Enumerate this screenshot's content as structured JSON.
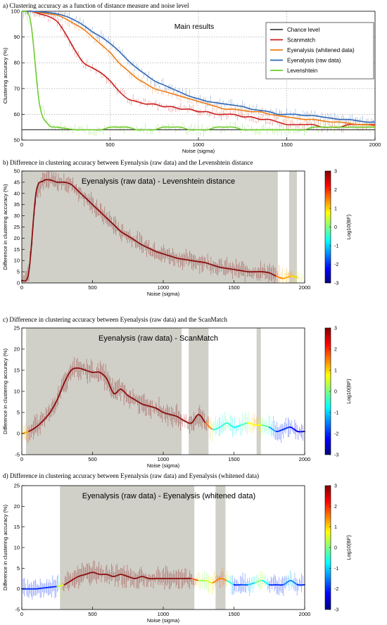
{
  "captions": {
    "a": "a) Clustering accuracy as a function of distance measure and noise level",
    "b": "b) Difference in clustering accuracy between Eyenalysis (raw data) and the Levenshtein distance",
    "c": "c) Difference in clustering accuracy between Eyenalysis (raw data) and the ScanMatch",
    "d": "d) Difference in clustering accuracy between Eyenalysis (raw data) and Eyenalysis (whitened data)"
  },
  "colorbar": {
    "label": "Log10(BF)",
    "ticks": [
      "3",
      "2",
      "1",
      "0",
      "-1",
      "-2",
      "-3"
    ],
    "colors": [
      "#7f0000",
      "#ff0000",
      "#ff7f00",
      "#ffff00",
      "#7fff7f",
      "#00ffff",
      "#007fff",
      "#0000ff",
      "#00007f"
    ]
  },
  "chart_data": [
    {
      "id": "a",
      "type": "line",
      "title": "Main results",
      "xlabel": "Noise (sigma)",
      "ylabel": "Clustering accuracy (%)",
      "xlim": [
        0,
        2000
      ],
      "ylim": [
        50,
        100
      ],
      "xticks": [
        "0",
        "500",
        "1000",
        "1500",
        "2000"
      ],
      "yticks": [
        "50",
        "60",
        "70",
        "80",
        "90",
        "100"
      ],
      "grid": true,
      "legend_position": "top-right",
      "x": [
        0,
        50,
        100,
        150,
        200,
        250,
        300,
        350,
        400,
        450,
        500,
        550,
        600,
        650,
        700,
        750,
        800,
        850,
        900,
        950,
        1000,
        1050,
        1100,
        1150,
        1200,
        1250,
        1300,
        1350,
        1400,
        1450,
        1500,
        1550,
        1600,
        1650,
        1700,
        1750,
        1800,
        1850,
        1900,
        1950,
        2000
      ],
      "series": [
        {
          "name": "Chance level",
          "color": "#404040",
          "values": [
            54,
            54,
            54,
            54,
            54,
            54,
            54,
            54,
            54,
            54,
            54,
            54,
            54,
            54,
            54,
            54,
            54,
            54,
            54,
            54,
            54,
            54,
            54,
            54,
            54,
            54,
            54,
            54,
            54,
            54,
            54,
            54,
            54,
            54,
            54,
            54,
            54,
            54,
            54,
            54,
            54
          ]
        },
        {
          "name": "Scanmatch",
          "color": "#cc1f1f",
          "values": [
            100,
            100,
            99,
            98,
            96,
            91,
            85,
            80,
            78,
            76,
            73,
            69,
            66,
            65,
            64,
            64,
            63,
            63,
            62,
            62,
            61,
            61,
            60,
            60,
            60,
            59,
            59,
            58,
            58,
            57,
            56,
            56,
            56,
            56,
            55,
            55,
            55,
            56,
            56,
            56,
            56
          ]
        },
        {
          "name": "Eyenalysis (whitened data)",
          "color": "#ee7d1a",
          "values": [
            100,
            100,
            99.5,
            99,
            98.5,
            97,
            95,
            93,
            90,
            87,
            84,
            80,
            77,
            74,
            72,
            70,
            69,
            68,
            67,
            66,
            65,
            64,
            63,
            62,
            62,
            61.5,
            61,
            61,
            60,
            59.5,
            59,
            58.5,
            58,
            58,
            57.5,
            57,
            57,
            56.5,
            56,
            56,
            55.5
          ]
        },
        {
          "name": "Eyenalysis (raw data)",
          "color": "#2f68b7",
          "values": [
            100,
            100,
            99.8,
            99.5,
            99,
            98,
            96.5,
            94.5,
            92,
            90,
            87.5,
            84.5,
            81,
            78,
            75.5,
            73,
            71.5,
            70,
            68.5,
            67,
            66,
            65,
            64.5,
            64,
            63.5,
            63,
            62,
            61.5,
            61,
            60,
            60,
            60,
            59.5,
            59.5,
            59,
            58.5,
            58,
            58,
            57.5,
            57,
            57
          ]
        },
        {
          "name": "Levenshtein",
          "color": "#6ecc2a",
          "values": [
            100,
            96,
            64,
            56,
            55,
            54.5,
            54,
            54,
            54,
            54,
            55,
            55,
            55,
            54,
            54,
            54,
            55,
            55,
            55,
            54,
            54,
            54,
            55,
            55,
            55,
            54,
            54,
            54,
            54,
            54,
            54,
            54,
            54,
            55,
            55,
            55,
            55,
            55,
            55,
            55,
            55
          ]
        }
      ]
    },
    {
      "id": "b",
      "type": "line",
      "title": "Eyenalysis (raw data) - Levenshtein distance",
      "xlabel": "Noise (sigma)",
      "ylabel": "Difference in clustering accuracy (%)",
      "xlim": [
        0,
        2000
      ],
      "ylim": [
        0,
        50
      ],
      "xticks": [
        "0",
        "500",
        "1000",
        "1500",
        "2000"
      ],
      "yticks": [
        "0",
        "5",
        "10",
        "15",
        "20",
        "25",
        "30",
        "35",
        "40",
        "45",
        "50"
      ],
      "shaded_x_ranges": [
        [
          0,
          1810
        ],
        [
          1890,
          1945
        ]
      ],
      "x": [
        0,
        50,
        100,
        150,
        200,
        250,
        300,
        350,
        400,
        450,
        500,
        550,
        600,
        650,
        700,
        750,
        800,
        850,
        900,
        950,
        1000,
        1050,
        1100,
        1150,
        1200,
        1250,
        1300,
        1350,
        1400,
        1450,
        1500,
        1550,
        1600,
        1650,
        1700,
        1750,
        1800,
        1850,
        1900,
        1950
      ],
      "values": [
        1,
        5,
        40,
        45.5,
        46,
        45,
        45,
        44,
        41,
        38,
        35,
        32,
        29,
        26,
        23,
        21,
        19,
        17,
        15.5,
        14,
        13,
        12,
        11,
        10.5,
        10,
        9.5,
        9,
        8,
        7,
        6.5,
        6,
        5.5,
        5,
        5,
        5,
        4.5,
        3,
        2,
        3,
        2.5
      ],
      "log10_bf": [
        3,
        3,
        3,
        3,
        3,
        3,
        3,
        3,
        3,
        3,
        3,
        3,
        3,
        3,
        3,
        3,
        3,
        3,
        3,
        3,
        3,
        3,
        3,
        3,
        3,
        3,
        3,
        3,
        3,
        3,
        3,
        3,
        3,
        3,
        3,
        3,
        2,
        1,
        1.5,
        0.5
      ]
    },
    {
      "id": "c",
      "type": "line",
      "title": "Eyenalysis (raw data) - ScanMatch",
      "xlabel": "Noise (sigma)",
      "ylabel": "Difference in clustering accuracy (%)",
      "xlim": [
        0,
        2000
      ],
      "ylim": [
        -5,
        25
      ],
      "xticks": [
        "0",
        "500",
        "1000",
        "1500",
        "2000"
      ],
      "yticks": [
        "-5",
        "0",
        "5",
        "10",
        "15",
        "20",
        "25"
      ],
      "shaded_x_ranges": [
        [
          30,
          1130
        ],
        [
          1180,
          1320
        ],
        [
          1660,
          1690
        ]
      ],
      "x": [
        0,
        50,
        100,
        150,
        200,
        250,
        300,
        350,
        400,
        450,
        500,
        550,
        600,
        650,
        700,
        750,
        800,
        850,
        900,
        950,
        1000,
        1050,
        1100,
        1150,
        1200,
        1250,
        1300,
        1350,
        1400,
        1450,
        1500,
        1550,
        1600,
        1650,
        1700,
        1750,
        1800,
        1850,
        1900,
        1950,
        2000
      ],
      "values": [
        0,
        0.5,
        1.5,
        3,
        5,
        8,
        12,
        15,
        15.5,
        15,
        14.5,
        14.5,
        13,
        9.5,
        10.5,
        9,
        8,
        7,
        6.5,
        6,
        5,
        4.5,
        4,
        3,
        2.5,
        4.5,
        2.5,
        1,
        1.5,
        2.5,
        1.5,
        2,
        2.5,
        2,
        2,
        1.5,
        0.5,
        1,
        1.5,
        0.5,
        0.5
      ],
      "log10_bf": [
        0.5,
        2,
        3,
        3,
        3,
        3,
        3,
        3,
        3,
        3,
        3,
        3,
        3,
        3,
        3,
        3,
        3,
        3,
        3,
        3,
        3,
        3,
        3,
        2,
        3,
        3,
        3,
        0,
        -1,
        0,
        -1,
        -0.5,
        0,
        1.5,
        0,
        -0.5,
        -2,
        -2,
        -2,
        -2.5,
        -2.5
      ]
    },
    {
      "id": "d",
      "type": "line",
      "title": "Eyenalysis (raw data) - Eyenalysis (whitened data)",
      "xlabel": "Noise (sigma)",
      "ylabel": "Difference in clustering accuracy (%)",
      "xlim": [
        0,
        2000
      ],
      "ylim": [
        -5,
        25
      ],
      "xticks": [
        "0",
        "500",
        "1000",
        "1500",
        "2000"
      ],
      "yticks": [
        "-5",
        "0",
        "5",
        "10",
        "15",
        "20",
        "25"
      ],
      "shaded_x_ranges": [
        [
          270,
          1220
        ],
        [
          1370,
          1440
        ]
      ],
      "x": [
        0,
        50,
        100,
        150,
        200,
        250,
        300,
        350,
        400,
        450,
        500,
        550,
        600,
        650,
        700,
        750,
        800,
        850,
        900,
        950,
        1000,
        1050,
        1100,
        1150,
        1200,
        1250,
        1300,
        1350,
        1400,
        1450,
        1500,
        1550,
        1600,
        1650,
        1700,
        1750,
        1800,
        1850,
        1900,
        1950,
        2000
      ],
      "values": [
        0,
        0,
        0,
        0.2,
        0.4,
        0.6,
        1,
        2,
        3,
        3.5,
        4,
        3.5,
        3.5,
        3,
        3.5,
        3,
        2.5,
        3,
        2.5,
        2.5,
        2.5,
        2.5,
        2.5,
        2.5,
        2.5,
        2,
        2,
        1.5,
        2.5,
        2,
        1,
        1,
        1,
        1.5,
        2,
        1,
        1,
        1,
        2,
        1,
        1
      ],
      "log10_bf": [
        -2,
        -2,
        -2,
        -2,
        -2,
        -2,
        3,
        3,
        3,
        3,
        3,
        3,
        3,
        3,
        3,
        3,
        3,
        3,
        3,
        3,
        3,
        3,
        3,
        3,
        3,
        0.5,
        0,
        1,
        2,
        1,
        -2,
        -2,
        -1.5,
        -0.5,
        0.5,
        -2,
        -2,
        -2,
        -1,
        -2,
        -2
      ]
    }
  ]
}
